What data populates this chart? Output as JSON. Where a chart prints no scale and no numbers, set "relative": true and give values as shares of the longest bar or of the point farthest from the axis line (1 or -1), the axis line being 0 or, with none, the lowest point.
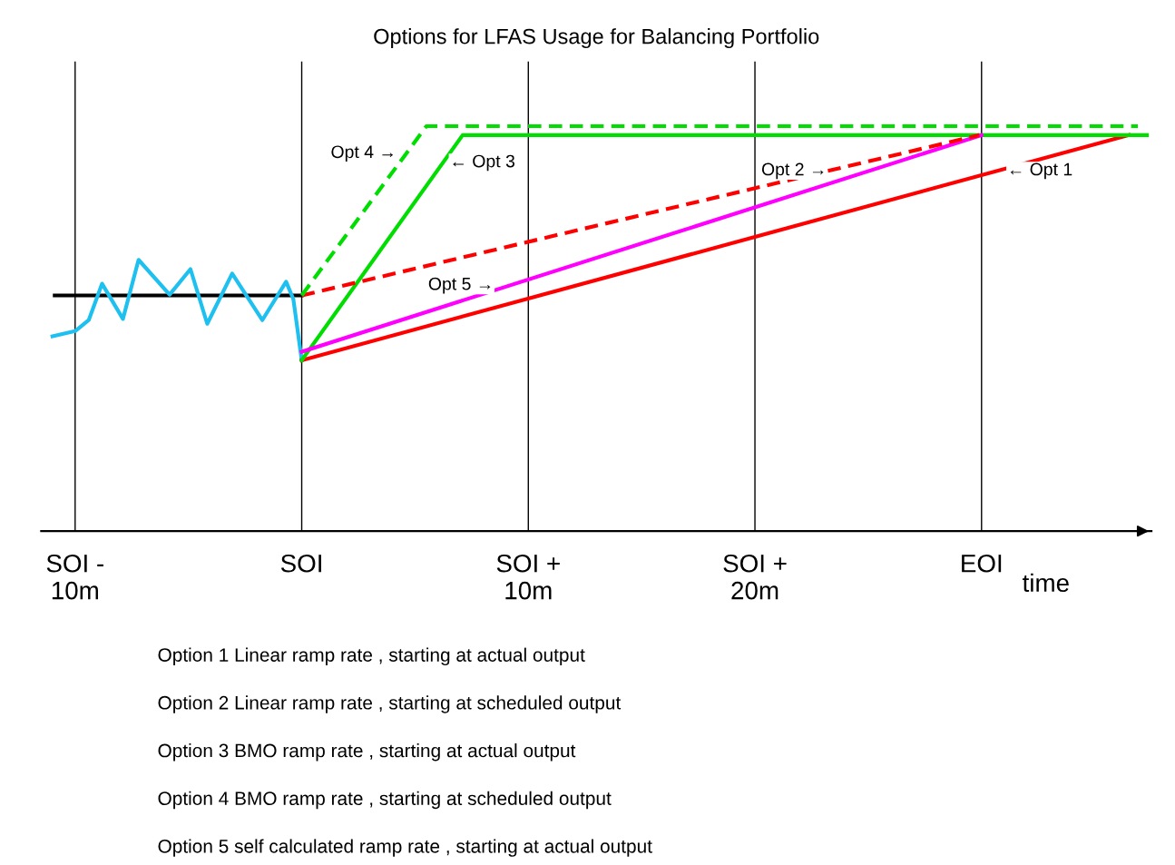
{
  "chart_data": {
    "type": "line",
    "title": "Options for LFAS Usage for Balancing Portfolio",
    "xlabel": "time",
    "relative": true,
    "grid": "x",
    "legend": false,
    "tick_labels": "x",
    "xlim": [
      -11.5,
      37.5
    ],
    "xticks": [
      {
        "value": -10,
        "label": "SOI -\n10m"
      },
      {
        "value": 0,
        "label": "SOI"
      },
      {
        "value": 10,
        "label": "SOI +\n10m"
      },
      {
        "value": 20,
        "label": "SOI +\n20m"
      },
      {
        "value": 30,
        "label": "EOI"
      }
    ],
    "series": [
      {
        "color": "#000000",
        "line_style": "solid",
        "x": [
          -10.9,
          0
        ],
        "values": [
          0.582,
          0.582
        ]
      },
      {
        "color": "#1ec0f0",
        "line_style": "solid",
        "x": [
          -11.0,
          -10.0,
          -9.4,
          -8.81,
          -7.89,
          -7.2,
          -5.83,
          -4.91,
          -4.17,
          -3.07,
          -1.74,
          -0.69,
          -0.37,
          0
        ],
        "values": [
          0.481,
          0.494,
          0.521,
          0.611,
          0.524,
          0.67,
          0.584,
          0.647,
          0.512,
          0.636,
          0.521,
          0.616,
          0.573,
          0.422
        ]
      },
      {
        "color": "#ff0000",
        "line_style": "solid",
        "x": [
          0,
          36.5
        ],
        "values": [
          0.422,
          0.978
        ]
      },
      {
        "color": "#ff0000",
        "line_style": "dashed",
        "x": [
          0,
          29.9
        ],
        "values": [
          0.582,
          0.978
        ]
      },
      {
        "color": "#00dd00",
        "line_style": "solid",
        "x": [
          0,
          7.1,
          37.3
        ],
        "values": [
          0.422,
          0.978,
          0.978
        ]
      },
      {
        "color": "#00dd00",
        "line_style": "dashed",
        "x": [
          0,
          5.5,
          36.9
        ],
        "values": [
          0.582,
          1.0,
          1.0
        ]
      },
      {
        "color": "#ff00ff",
        "line_style": "solid",
        "x": [
          0,
          30.0
        ],
        "values": [
          0.443,
          0.978
        ]
      }
    ],
    "annotations": [
      {
        "text": "Opt 4 →",
        "x": 4.4,
        "y": 0.933
      },
      {
        "text": "← Opt 3",
        "x": 6.3,
        "y": 0.91
      },
      {
        "text": "Opt 2 →",
        "x": 23.4,
        "y": 0.89
      },
      {
        "text": "← Opt 1",
        "x": 30.9,
        "y": 0.89
      },
      {
        "text": "Opt 5 →",
        "x": 8.7,
        "y": 0.607
      },
      "Option 1 Linear ramp rate , starting at actual output",
      "Option 2 Linear ramp rate , starting at scheduled output",
      "Option 3 BMO ramp rate , starting at actual output",
      "Option 4 BMO ramp rate , starting at scheduled output",
      "Option 5 self calculated ramp rate , starting at actual output"
    ]
  }
}
